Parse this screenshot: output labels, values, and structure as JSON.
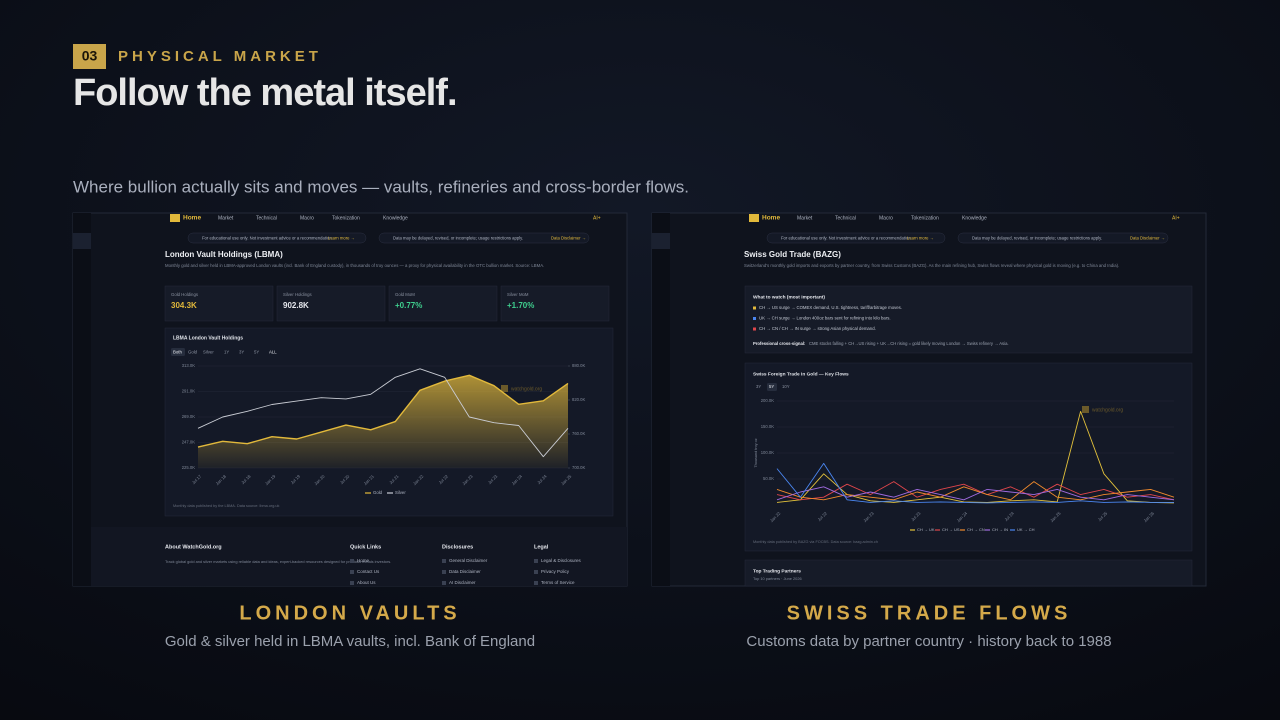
{
  "section": {
    "number": "03",
    "label": "PHYSICAL MARKET"
  },
  "title": "Follow the metal itself.",
  "subtitle": "Where bullion actually sits and moves — vaults, refineries and cross-border flows.",
  "nav": {
    "home": "Home",
    "items": [
      "Market",
      "Technical",
      "Macro",
      "Tokenization",
      "Knowledge"
    ],
    "ai": "AI+"
  },
  "notices": [
    {
      "text": "For educational use only. Not investment advice or a recommendation.",
      "link": "Learn more →"
    },
    {
      "text": "Data may be delayed, revised, or incomplete; usage restrictions apply.",
      "link": "Data Disclaimer →"
    }
  ],
  "left": {
    "heading": "London Vault Holdings (LBMA)",
    "description": "Monthly gold and silver held in LBMA-approved London vaults (incl. Bank of England custody), in thousands of troy ounces — a proxy for physical availability in the OTC bullion market. Source: LBMA.",
    "stats": [
      {
        "label": "Gold Holdings",
        "value": "304.3K",
        "color": "#e2b93b"
      },
      {
        "label": "Silver Holdings",
        "value": "902.8K",
        "color": "#e6e8ee"
      },
      {
        "label": "Gold MoM",
        "value": "+0.77%",
        "color": "#3fd08f"
      },
      {
        "label": "Silver MoM",
        "value": "+1.70%",
        "color": "#3fd08f"
      }
    ],
    "chart": {
      "title": "LBMA London Vault Holdings",
      "buttons": [
        "Both",
        "Gold",
        "Silver",
        "1Y",
        "3Y",
        "5Y",
        "ALL"
      ],
      "watermark": "watchgold.org",
      "categories": [
        "Jul 17",
        "Jan 18",
        "Jul 18",
        "Jan 19",
        "Jul 19",
        "Jan 20",
        "Jul 20",
        "Jan 21",
        "Jul 21",
        "Jan 22",
        "Jul 22",
        "Jan 23",
        "Jul 23",
        "Jan 24",
        "Jul 24",
        "Jan 25"
      ],
      "ylim": [
        225,
        313
      ],
      "yticks": [
        {
          "value": 225,
          "label": "225.0K"
        },
        {
          "value": 247,
          "label": "247.0K"
        },
        {
          "value": 269,
          "label": "269.0K"
        },
        {
          "value": 291,
          "label": "291.0K"
        },
        {
          "value": 313,
          "label": "313.0K"
        }
      ],
      "y2lim": [
        700,
        880
      ],
      "y2ticks": [
        {
          "value": 700,
          "label": "700.0K"
        },
        {
          "value": 760,
          "label": "760.0K"
        },
        {
          "value": 820,
          "label": "820.0K"
        },
        {
          "value": 880,
          "label": "880.0K"
        }
      ],
      "series": [
        {
          "name": "Gold",
          "color": "#e2b93b",
          "values": [
            243,
            248,
            246,
            252,
            250,
            256,
            262,
            258,
            265,
            292,
            300,
            305,
            296,
            280,
            283,
            298
          ]
        },
        {
          "name": "Silver",
          "color": "#c9ccd4",
          "axis": "y2",
          "values": [
            770,
            790,
            800,
            812,
            818,
            824,
            822,
            830,
            860,
            875,
            860,
            790,
            780,
            775,
            720,
            770
          ]
        }
      ],
      "footnote": "Monthly data published by the LBMA. Data source: lbma.org.uk"
    },
    "footer": {
      "about_title": "About WatchGold.org",
      "about_text": "Track global gold and silver markets using reliable data and ideas, expert-backed resources designed for precious metals investors.",
      "columns": [
        {
          "title": "Quick Links",
          "items": [
            "Home",
            "Contact Us",
            "About Us"
          ]
        },
        {
          "title": "Disclosures",
          "items": [
            "General Disclaimer",
            "Data Disclaimer",
            "AI Disclaimer"
          ]
        },
        {
          "title": "Legal",
          "items": [
            "Legal & Disclosures",
            "Privacy Policy",
            "Terms of Service"
          ]
        }
      ]
    },
    "caption": {
      "title": "LONDON VAULTS",
      "text": "Gold & silver held in LBMA vaults, incl. Bank of England"
    }
  },
  "right": {
    "heading": "Swiss Gold Trade (BAZG)",
    "description": "Switzerland's monthly gold imports and exports by partner country, from Swiss Customs (BAZG). As the main refining hub, Swiss flows reveal where physical gold is moving (e.g. to China and India).",
    "watch": {
      "title": "What to watch (most important)",
      "items": [
        "CH → US surge → COMEX demand, U.S. tightness, tariff/arbitrage moves.",
        "UK → CH surge → London 400oz bars sent for refining into kilo bars.",
        "CH → CN / CH → IN surge → strong Asian physical demand."
      ],
      "signal_label": "Professional cross-signal:",
      "signal_text": "CME stocks falling + CH→US rising + UK→CH rising = gold likely moving London → Swiss refinery → Asia."
    },
    "chart": {
      "title": "Swiss Foreign Trade In Gold — Key Flows",
      "buttons": [
        "3Y",
        "5Y",
        "10Y"
      ],
      "watermark": "watchgold.org",
      "y_label": "Thousand troy oz",
      "categories": [
        "Jan 22",
        null,
        "Jul 22",
        null,
        "Jan 23",
        null,
        "Jul 23",
        null,
        "Jan 24",
        null,
        "Jul 24",
        null,
        "Jan 25",
        null,
        "Jul 25",
        null,
        "Jan 26",
        null
      ],
      "ylim": [
        0,
        200
      ],
      "yticks": [
        {
          "value": 50,
          "label": "50.0K"
        },
        {
          "value": 100,
          "label": "100.0K"
        },
        {
          "value": 150,
          "label": "150.0K"
        },
        {
          "value": 200,
          "label": "200.0K"
        }
      ],
      "series": [
        {
          "name": "CH → UK",
          "color": "#e2c13b",
          "values": [
            5,
            10,
            60,
            20,
            8,
            5,
            10,
            15,
            6,
            5,
            8,
            10,
            6,
            180,
            60,
            8,
            5,
            4
          ]
        },
        {
          "name": "CH → US",
          "color": "#e0464b",
          "values": [
            20,
            10,
            15,
            40,
            20,
            45,
            15,
            30,
            40,
            20,
            35,
            15,
            40,
            20,
            30,
            15,
            20,
            10
          ]
        },
        {
          "name": "CH → CN",
          "color": "#f08a2c",
          "values": [
            30,
            15,
            10,
            20,
            15,
            10,
            25,
            15,
            35,
            20,
            10,
            45,
            15,
            10,
            20,
            25,
            30,
            15
          ]
        },
        {
          "name": "CH → IN",
          "color": "#a06be0",
          "values": [
            10,
            25,
            35,
            15,
            25,
            15,
            30,
            20,
            10,
            30,
            25,
            20,
            30,
            15,
            10,
            20,
            15,
            10
          ]
        },
        {
          "name": "UK → CH",
          "color": "#4a86f0",
          "values": [
            70,
            15,
            80,
            10,
            5,
            8,
            5,
            6,
            5,
            4,
            5,
            6,
            5,
            8,
            5,
            6,
            5,
            5
          ]
        }
      ],
      "footnote": "Monthly data published by BAZG via FOCBS. Data source: bazg.admin.ch"
    },
    "partners": {
      "title": "Top Trading Partners",
      "text": "Top 10 partners · June 2026"
    },
    "caption": {
      "title": "SWISS TRADE FLOWS",
      "text": "Customs data by partner country · history back to 1988"
    }
  }
}
